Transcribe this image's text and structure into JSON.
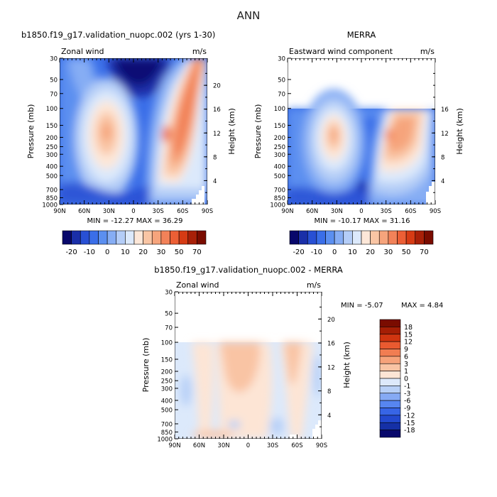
{
  "page": {
    "title": "ANN"
  },
  "chart_data": [
    {
      "type": "heatmap",
      "title": "b1850.f19_g17.validation_nuopc.002 (yrs 1-30)",
      "subtitle_left": "Zonal wind",
      "units": "m/s",
      "ylabel": "Pressure (mb)",
      "ylabel_right": "Height (km)",
      "xticks": [
        "90N",
        "60N",
        "30N",
        "0",
        "30S",
        "60S",
        "90S"
      ],
      "yticks": [
        "30",
        "50",
        "70",
        "100",
        "150",
        "200",
        "250",
        "300",
        "400",
        "500",
        "700",
        "850",
        "1000"
      ],
      "yticks_right": [
        "20",
        "16",
        "12",
        "8",
        "4"
      ],
      "stats": "MIN = -12.27   MAX =  36.29",
      "colorbar_labels": [
        "-20",
        "-10",
        "0",
        "10",
        "20",
        "30",
        "50",
        "70"
      ]
    },
    {
      "type": "heatmap",
      "title": "MERRA",
      "subtitle_left": "Eastward wind component",
      "units": "m/s",
      "ylabel": "Pressure (mb)",
      "ylabel_right": "Height (km)",
      "xticks": [
        "90N",
        "60N",
        "30N",
        "0",
        "30S",
        "60S",
        "90S"
      ],
      "yticks": [
        "30",
        "50",
        "70",
        "100",
        "150",
        "200",
        "250",
        "300",
        "400",
        "500",
        "700",
        "850",
        "1000"
      ],
      "yticks_right": [
        "16",
        "12",
        "8",
        "4"
      ],
      "stats": "MIN = -10.17   MAX =  31.16",
      "colorbar_labels": [
        "-20",
        "-10",
        "0",
        "10",
        "20",
        "30",
        "50",
        "70"
      ]
    },
    {
      "type": "heatmap",
      "title": "b1850.f19_g17.validation_nuopc.002 - MERRA",
      "subtitle_left": "Zonal wind",
      "units": "m/s",
      "ylabel": "Pressure (mb)",
      "ylabel_right": "Height (km)",
      "xticks": [
        "90N",
        "60N",
        "30N",
        "0",
        "30S",
        "60S",
        "90S"
      ],
      "yticks": [
        "30",
        "50",
        "70",
        "100",
        "150",
        "200",
        "250",
        "300",
        "400",
        "500",
        "700",
        "850",
        "1000"
      ],
      "yticks_right": [
        "20",
        "16",
        "12",
        "8",
        "4"
      ],
      "stats_min": "MIN =  -5.07",
      "stats_max": "MAX =   4.84",
      "colorbar_labels": [
        "18",
        "15",
        "12",
        "9",
        "6",
        "3",
        "1",
        "0",
        "-1",
        "-3",
        "-6",
        "-9",
        "-12",
        "-15",
        "-18"
      ]
    }
  ],
  "colors": {
    "full_palette": [
      "#08086b",
      "#1a2fa8",
      "#2850d4",
      "#3a6ee8",
      "#5b8ff0",
      "#86adf4",
      "#b4cdf7",
      "#dce9fb",
      "#fde7d8",
      "#f9c5a4",
      "#f6a47c",
      "#f28259",
      "#ec5f35",
      "#d63b14",
      "#a82008",
      "#7a0c00"
    ],
    "diff_palette": [
      "#08086b",
      "#1530a6",
      "#2349cf",
      "#3765e6",
      "#5786f0",
      "#86aaf4",
      "#b8d0f7",
      "#dde9fb",
      "#fde5d5",
      "#f9c4a4",
      "#f6a27a",
      "#f17d52",
      "#e95a30",
      "#d03510",
      "#a51e05",
      "#7a0c00"
    ]
  }
}
